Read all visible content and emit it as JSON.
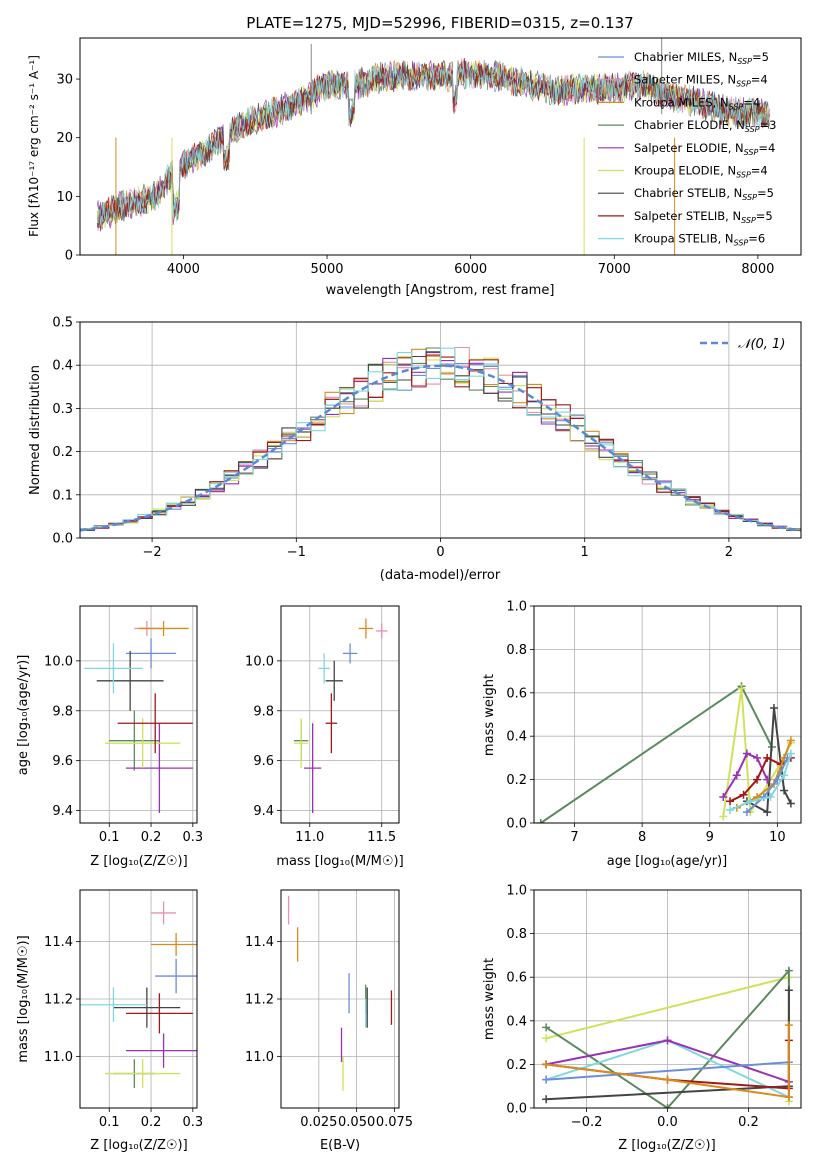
{
  "title": "PLATE=1275, MJD=52996, FIBERID=0315, z=0.137",
  "spectrum": {
    "xlabel": "wavelength [Angstrom, rest frame]",
    "ylabel": "Flux [fλ10⁻¹⁷ erg cm⁻² s⁻¹ A⁻¹]",
    "xticks": [
      "4000",
      "5000",
      "6000",
      "7000",
      "8000"
    ],
    "yticks": [
      "0",
      "10",
      "20",
      "30"
    ],
    "legend": [
      {
        "name": "Chabrier MILES, N_SSP=5",
        "color": "#6b8fd6"
      },
      {
        "name": "Salpeter MILES, N_SSP=4",
        "color": "#e88fb0"
      },
      {
        "name": "Kroupa MILES, N_SSP=4",
        "color": "#d98b1c"
      },
      {
        "name": "Chabrier ELODIE, N_SSP=3",
        "color": "#5a8a5e"
      },
      {
        "name": "Salpeter ELODIE, N_SSP=4",
        "color": "#9b30b8"
      },
      {
        "name": "Kroupa ELODIE, N_SSP=4",
        "color": "#cde35a"
      },
      {
        "name": "Chabrier STELIB, N_SSP=5",
        "color": "#444444"
      },
      {
        "name": "Salpeter STELIB, N_SSP=5",
        "color": "#a01818"
      },
      {
        "name": "Kroupa STELIB, N_SSP=6",
        "color": "#7fd8e0"
      }
    ]
  },
  "residuals": {
    "xlabel": "(data-model)/error",
    "ylabel": "Normed distribution",
    "xticks": [
      "−2",
      "−1",
      "0",
      "1",
      "2"
    ],
    "yticks": [
      "0.0",
      "0.1",
      "0.2",
      "0.3",
      "0.4",
      "0.5"
    ],
    "legend": "𝒩(0, 1)"
  },
  "panels": {
    "age_vs_Z": {
      "xlabel": "Z [log₁₀(Z/Z☉)]",
      "ylabel": "age  [log₁₀(age/yr)]",
      "xticks": [
        "0.1",
        "0.2",
        "0.3"
      ],
      "yticks": [
        "9.4",
        "9.6",
        "9.8",
        "10.0"
      ]
    },
    "age_vs_mass": {
      "xlabel": "mass [log₁₀(M/M☉)]",
      "xticks": [
        "11.0",
        "11.5"
      ],
      "yticks": [
        "9.4",
        "9.6",
        "9.8",
        "10.0"
      ]
    },
    "weight_vs_age": {
      "xlabel": "age  [log₁₀(age/yr)]",
      "ylabel": "mass weight",
      "xticks": [
        "7",
        "8",
        "9",
        "10"
      ],
      "yticks": [
        "0.0",
        "0.2",
        "0.4",
        "0.6",
        "0.8",
        "1.0"
      ]
    },
    "mass_vs_Z": {
      "xlabel": "Z [log₁₀(Z/Z☉)]",
      "ylabel": "mass [log₁₀(M/M☉)]",
      "xticks": [
        "0.1",
        "0.2",
        "0.3"
      ],
      "yticks": [
        "11.0",
        "11.2",
        "11.4"
      ]
    },
    "mass_vs_ebv": {
      "xlabel": "E(B-V)",
      "xticks": [
        "0.025",
        "0.050",
        "0.075"
      ],
      "yticks": [
        "11.0",
        "11.2",
        "11.4"
      ]
    },
    "weight_vs_Z": {
      "xlabel": "Z [log₁₀(Z/Z☉)]",
      "ylabel": "mass weight",
      "xticks": [
        "−0.2",
        "0.0",
        "0.2"
      ],
      "yticks": [
        "0.0",
        "0.2",
        "0.4",
        "0.6",
        "0.8",
        "1.0"
      ]
    }
  },
  "chart_data": [
    {
      "type": "line",
      "title": "PLATE=1275, MJD=52996, FIBERID=0315, z=0.137",
      "xlabel": "wavelength [Angstrom, rest frame]",
      "ylabel": "Flux [fλ10⁻¹⁷ erg cm⁻² s⁻¹ A⁻¹]",
      "xlim": [
        3280,
        8300
      ],
      "ylim": [
        0,
        37
      ],
      "x": [
        3400,
        3600,
        3800,
        3900,
        4000,
        4100,
        4200,
        4300,
        4400,
        4600,
        4800,
        5000,
        5200,
        5400,
        5600,
        5800,
        6000,
        6200,
        6400,
        6600,
        6800,
        7000,
        7200,
        7400,
        7600,
        7800,
        8000
      ],
      "y": [
        6.5,
        8.5,
        10,
        13,
        15.5,
        17,
        18.5,
        21,
        22,
        24,
        26,
        29,
        29,
        30.5,
        30.5,
        30.5,
        31,
        30.5,
        29,
        28,
        28.5,
        28.5,
        29,
        27,
        26,
        24.5,
        24
      ],
      "grid": false
    },
    {
      "type": "bar",
      "xlabel": "(data-model)/error",
      "ylabel": "Normed distribution",
      "xlim": [
        -2.5,
        2.5
      ],
      "ylim": [
        0,
        0.5
      ],
      "x": [
        -2.4,
        -2.2,
        -2.0,
        -1.8,
        -1.6,
        -1.4,
        -1.2,
        -1.0,
        -0.8,
        -0.6,
        -0.4,
        -0.2,
        0.0,
        0.2,
        0.4,
        0.6,
        0.8,
        1.0,
        1.2,
        1.4,
        1.6,
        1.8,
        2.0,
        2.2,
        2.4
      ],
      "values": [
        0.03,
        0.04,
        0.06,
        0.09,
        0.13,
        0.17,
        0.21,
        0.24,
        0.28,
        0.33,
        0.36,
        0.39,
        0.4,
        0.39,
        0.36,
        0.33,
        0.28,
        0.24,
        0.2,
        0.16,
        0.12,
        0.09,
        0.06,
        0.04,
        0.03
      ],
      "series_name": "𝒩(0, 1)"
    },
    {
      "type": "scatter",
      "xlabel": "Z [log₁₀(Z/Z☉)]",
      "ylabel": "age  [log₁₀(age/yr)]",
      "xlim": [
        0.03,
        0.31
      ],
      "ylim": [
        9.35,
        10.22
      ],
      "points": [
        {
          "x": 0.2,
          "y": 10.03,
          "xerr": 0.06,
          "yerr": 0.06,
          "color": "#6b8fd6"
        },
        {
          "x": 0.19,
          "y": 10.13,
          "xerr": 0.03,
          "yerr": 0.03,
          "color": "#e88fb0"
        },
        {
          "x": 0.23,
          "y": 10.13,
          "xerr": 0.06,
          "yerr": 0.03,
          "color": "#d98b1c"
        },
        {
          "x": 0.16,
          "y": 9.68,
          "xerr": 0.06,
          "yerr": 0.12,
          "color": "#5a8a5e"
        },
        {
          "x": 0.22,
          "y": 9.57,
          "xerr": 0.08,
          "yerr": 0.18,
          "color": "#9b30b8"
        },
        {
          "x": 0.18,
          "y": 9.67,
          "xerr": 0.09,
          "yerr": 0.1,
          "color": "#cde35a"
        },
        {
          "x": 0.15,
          "y": 9.92,
          "xerr": 0.08,
          "yerr": 0.12,
          "color": "#444444"
        },
        {
          "x": 0.21,
          "y": 9.75,
          "xerr": 0.09,
          "yerr": 0.12,
          "color": "#a01818"
        },
        {
          "x": 0.11,
          "y": 9.97,
          "xerr": 0.07,
          "yerr": 0.1,
          "color": "#7fd8e0"
        }
      ]
    },
    {
      "type": "scatter",
      "xlabel": "mass [log₁₀(M/M☉)]",
      "xlim": [
        10.8,
        11.62
      ],
      "ylim": [
        9.35,
        10.22
      ],
      "points": [
        {
          "x": 11.28,
          "y": 10.03,
          "xerr": 0.05,
          "yerr": 0.04,
          "color": "#6b8fd6"
        },
        {
          "x": 11.5,
          "y": 10.12,
          "xerr": 0.04,
          "yerr": 0.03,
          "color": "#e88fb0"
        },
        {
          "x": 11.39,
          "y": 10.13,
          "xerr": 0.05,
          "yerr": 0.04,
          "color": "#d98b1c"
        },
        {
          "x": 10.94,
          "y": 9.68,
          "xerr": 0.05,
          "yerr": 0.08,
          "color": "#5a8a5e"
        },
        {
          "x": 11.02,
          "y": 9.57,
          "xerr": 0.06,
          "yerr": 0.18,
          "color": "#9b30b8"
        },
        {
          "x": 10.94,
          "y": 9.67,
          "xerr": 0.05,
          "yerr": 0.1,
          "color": "#cde35a"
        },
        {
          "x": 11.17,
          "y": 9.92,
          "xerr": 0.06,
          "yerr": 0.08,
          "color": "#444444"
        },
        {
          "x": 11.15,
          "y": 9.75,
          "xerr": 0.04,
          "yerr": 0.12,
          "color": "#a01818"
        },
        {
          "x": 11.1,
          "y": 9.97,
          "xerr": 0.04,
          "yerr": 0.06,
          "color": "#7fd8e0"
        }
      ]
    },
    {
      "type": "line",
      "xlabel": "age  [log₁₀(age/yr)]",
      "ylabel": "mass weight",
      "xlim": [
        6.4,
        10.35
      ],
      "ylim": [
        0,
        1
      ],
      "series": [
        {
          "color": "#5a8a5e",
          "x": [
            6.5,
            9.47,
            9.92
          ],
          "y": [
            0.0,
            0.63,
            0.35
          ]
        },
        {
          "color": "#cde35a",
          "x": [
            9.2,
            9.47,
            9.6,
            10.1,
            10.2
          ],
          "y": [
            0.03,
            0.62,
            0.05,
            0.3,
            0.37
          ]
        },
        {
          "color": "#444444",
          "x": [
            9.55,
            9.85,
            9.95,
            10.1,
            10.2
          ],
          "y": [
            0.1,
            0.05,
            0.53,
            0.15,
            0.09
          ]
        },
        {
          "color": "#9b30b8",
          "x": [
            9.2,
            9.4,
            9.55,
            9.7,
            9.85
          ],
          "y": [
            0.12,
            0.22,
            0.32,
            0.3,
            0.2
          ]
        },
        {
          "color": "#a01818",
          "x": [
            9.3,
            9.5,
            9.7,
            9.85,
            10.05,
            10.2
          ],
          "y": [
            0.1,
            0.13,
            0.2,
            0.3,
            0.27,
            0.3
          ]
        },
        {
          "color": "#d98b1c",
          "x": [
            9.4,
            9.7,
            9.95,
            10.1,
            10.2
          ],
          "y": [
            0.07,
            0.12,
            0.18,
            0.3,
            0.38
          ]
        },
        {
          "color": "#6b8fd6",
          "x": [
            9.55,
            9.8,
            10.0,
            10.15
          ],
          "y": [
            0.05,
            0.12,
            0.2,
            0.3
          ]
        },
        {
          "color": "#7fd8e0",
          "x": [
            9.3,
            9.6,
            9.9,
            10.1,
            10.2
          ],
          "y": [
            0.06,
            0.1,
            0.12,
            0.22,
            0.32
          ]
        }
      ]
    },
    {
      "type": "scatter",
      "xlabel": "Z [log₁₀(Z/Z☉)]",
      "ylabel": "mass [log₁₀(M/M☉)]",
      "xlim": [
        0.03,
        0.31
      ],
      "ylim": [
        10.82,
        11.58
      ],
      "points": [
        {
          "x": 0.26,
          "y": 11.28,
          "xerr": 0.05,
          "yerr": 0.06,
          "color": "#6b8fd6"
        },
        {
          "x": 0.23,
          "y": 11.5,
          "xerr": 0.03,
          "yerr": 0.04,
          "color": "#e88fb0"
        },
        {
          "x": 0.26,
          "y": 11.39,
          "xerr": 0.06,
          "yerr": 0.04,
          "color": "#d98b1c"
        },
        {
          "x": 0.16,
          "y": 10.94,
          "xerr": 0.05,
          "yerr": 0.05,
          "color": "#5a8a5e"
        },
        {
          "x": 0.23,
          "y": 11.02,
          "xerr": 0.09,
          "yerr": 0.06,
          "color": "#9b30b8"
        },
        {
          "x": 0.18,
          "y": 10.94,
          "xerr": 0.09,
          "yerr": 0.05,
          "color": "#cde35a"
        },
        {
          "x": 0.19,
          "y": 11.17,
          "xerr": 0.08,
          "yerr": 0.07,
          "color": "#444444"
        },
        {
          "x": 0.22,
          "y": 11.15,
          "xerr": 0.08,
          "yerr": 0.07,
          "color": "#a01818"
        },
        {
          "x": 0.11,
          "y": 11.18,
          "xerr": 0.08,
          "yerr": 0.06,
          "color": "#7fd8e0"
        }
      ]
    },
    {
      "type": "scatter",
      "xlabel": "E(B-V)",
      "xlim": [
        0.0,
        0.078
      ],
      "ylim": [
        10.82,
        11.58
      ],
      "points": [
        {
          "x": 0.045,
          "y": 11.22,
          "yerr": 0.07,
          "color": "#6b8fd6"
        },
        {
          "x": 0.005,
          "y": 11.51,
          "yerr": 0.05,
          "color": "#e88fb0"
        },
        {
          "x": 0.011,
          "y": 11.39,
          "yerr": 0.06,
          "color": "#d98b1c"
        },
        {
          "x": 0.056,
          "y": 11.2,
          "yerr": 0.05,
          "color": "#5a8a5e"
        },
        {
          "x": 0.04,
          "y": 11.04,
          "yerr": 0.06,
          "color": "#9b30b8"
        },
        {
          "x": 0.041,
          "y": 10.94,
          "yerr": 0.06,
          "color": "#cde35a"
        },
        {
          "x": 0.057,
          "y": 11.17,
          "yerr": 0.07,
          "color": "#444444"
        },
        {
          "x": 0.073,
          "y": 11.17,
          "yerr": 0.06,
          "color": "#a01818"
        },
        {
          "x": 0.056,
          "y": 11.15,
          "yerr": 0.05,
          "color": "#7fd8e0"
        }
      ]
    },
    {
      "type": "line",
      "xlabel": "Z [log₁₀(Z/Z☉)]",
      "ylabel": "mass weight",
      "xlim": [
        -0.33,
        0.33
      ],
      "ylim": [
        0,
        1
      ],
      "series": [
        {
          "color": "#cde35a",
          "x": [
            -0.3,
            0.3,
            0.3
          ],
          "y": [
            0.32,
            0.6,
            0.03
          ]
        },
        {
          "color": "#5a8a5e",
          "x": [
            -0.3,
            0.0,
            0.3,
            0.3
          ],
          "y": [
            0.37,
            0.0,
            0.63,
            0.05
          ]
        },
        {
          "color": "#444444",
          "x": [
            -0.3,
            0.3,
            0.3
          ],
          "y": [
            0.04,
            0.1,
            0.54
          ]
        },
        {
          "color": "#7fd8e0",
          "x": [
            -0.3,
            0.0,
            0.3
          ],
          "y": [
            0.13,
            0.31,
            0.05
          ]
        },
        {
          "color": "#9b30b8",
          "x": [
            -0.3,
            0.0,
            0.3
          ],
          "y": [
            0.2,
            0.31,
            0.12
          ]
        },
        {
          "color": "#6b8fd6",
          "x": [
            -0.3,
            0.3
          ],
          "y": [
            0.13,
            0.21
          ]
        },
        {
          "color": "#a01818",
          "x": [
            -0.3,
            0.0,
            0.3,
            0.3
          ],
          "y": [
            0.2,
            0.13,
            0.09,
            0.31
          ]
        },
        {
          "color": "#d98b1c",
          "x": [
            -0.3,
            0.0,
            0.3,
            0.3
          ],
          "y": [
            0.2,
            0.13,
            0.05,
            0.38
          ]
        }
      ]
    }
  ]
}
